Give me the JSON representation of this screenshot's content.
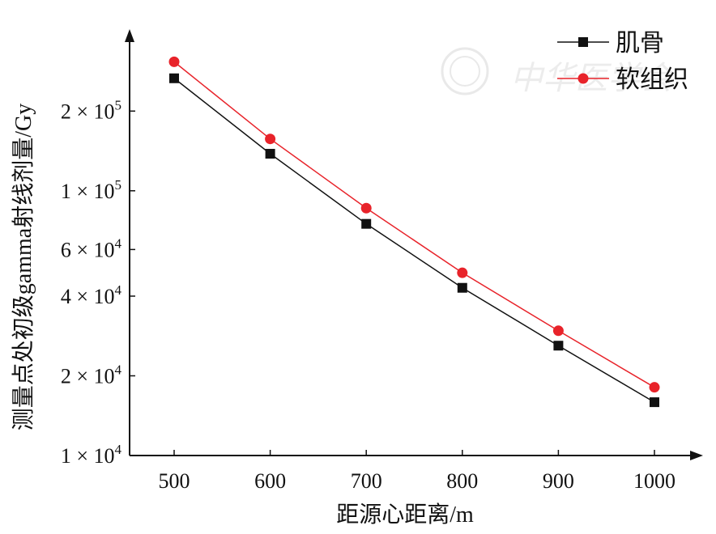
{
  "chart_data": {
    "type": "line",
    "title": "",
    "xlabel": "距源心距离/m",
    "ylabel": "测量点处初级gamma射线剂量/Gy",
    "yscale": "log",
    "x": [
      500,
      600,
      700,
      800,
      900,
      1000
    ],
    "xlim": [
      450,
      1050
    ],
    "ylim": [
      10000,
      340000
    ],
    "xticks": [
      "500",
      "600",
      "700",
      "800",
      "900",
      "1000"
    ],
    "yticks": [
      {
        "value": 10000,
        "mantissa": "1",
        "exp": "4"
      },
      {
        "value": 20000,
        "mantissa": "2",
        "exp": "4"
      },
      {
        "value": 40000,
        "mantissa": "4",
        "exp": "4"
      },
      {
        "value": 60000,
        "mantissa": "6",
        "exp": "4"
      },
      {
        "value": 100000,
        "mantissa": "1",
        "exp": "5"
      },
      {
        "value": 200000,
        "mantissa": "2",
        "exp": "5"
      }
    ],
    "series": [
      {
        "name": "肌骨",
        "color": "#111111",
        "marker": "square",
        "values": [
          266000,
          138000,
          75000,
          43000,
          26000,
          15900
        ]
      },
      {
        "name": "软组织",
        "color": "#e8232a",
        "marker": "circle",
        "values": [
          307000,
          157000,
          86000,
          49000,
          29600,
          18100
        ]
      }
    ],
    "legend": "top-right",
    "grid": false
  },
  "watermark": "中华医学会"
}
